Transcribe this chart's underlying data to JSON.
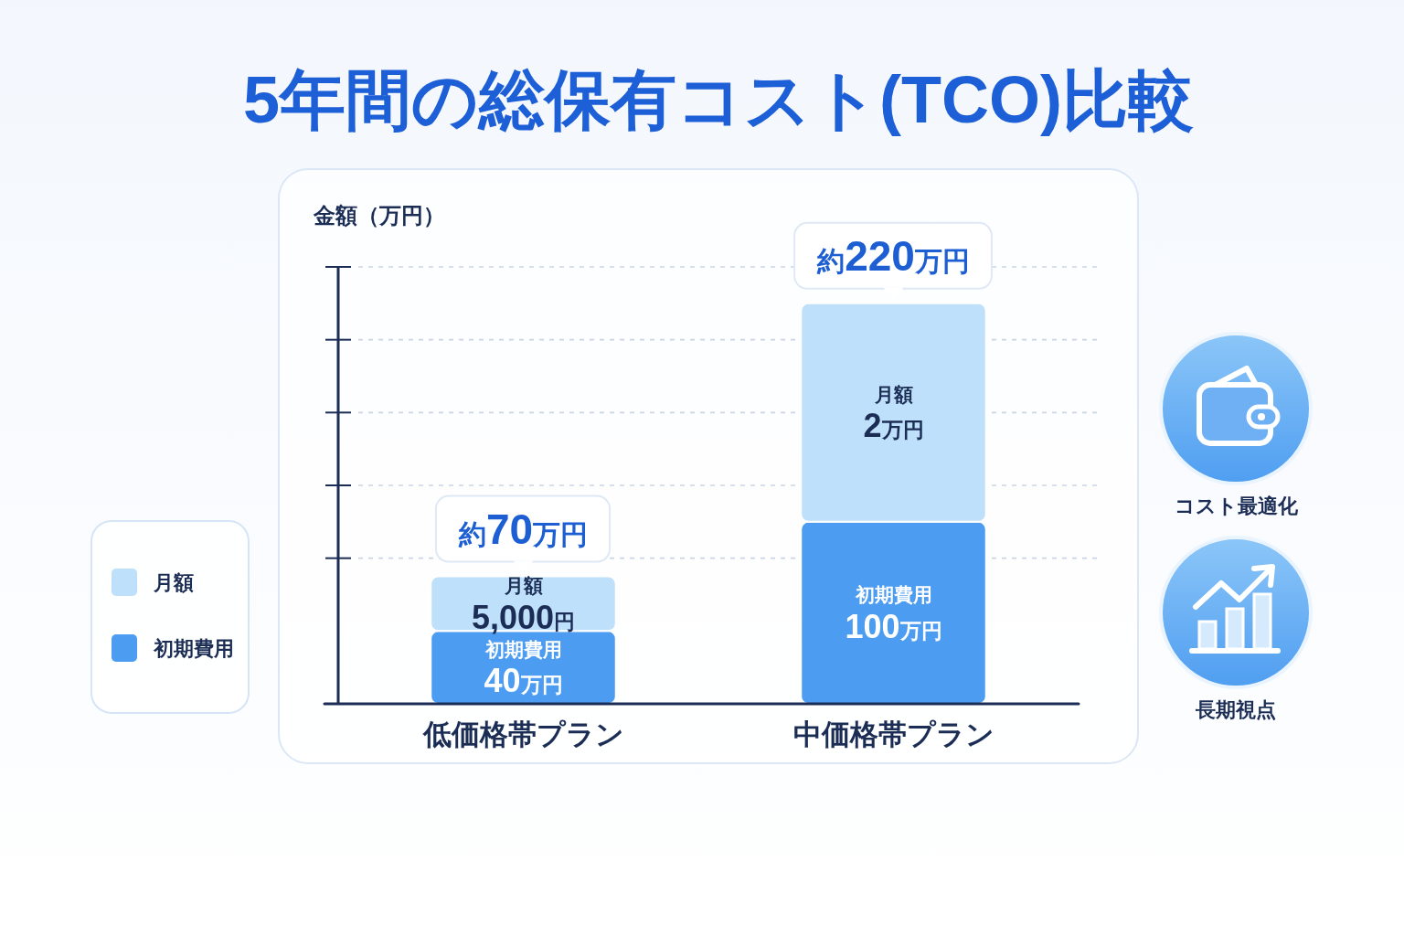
{
  "chart_data": {
    "type": "bar",
    "title": "5年間の総保有コスト(TCO)比較",
    "ylabel": "金額（万円）",
    "categories": [
      "低価格帯プラン",
      "中価格帯プラン"
    ],
    "stacked": true,
    "series": [
      {
        "name": "初期費用",
        "color": "#4c9cf2",
        "values": [
          40,
          100
        ],
        "value_labels": [
          "初期費用\n40万円",
          "初期費用\n100万円"
        ]
      },
      {
        "name": "月額",
        "color": "#bfe0fa",
        "values": [
          30,
          120
        ],
        "value_labels": [
          "月額\n5,000円",
          "月額\n2万円"
        ]
      }
    ],
    "totals": [
      "約70万円",
      "約220万円"
    ],
    "ylim": [
      0,
      240
    ],
    "yticks": [
      {
        "value": 80,
        "label": null
      },
      {
        "value": 120,
        "label": null
      },
      {
        "value": 160,
        "label": null
      },
      {
        "value": 200,
        "label": null
      },
      {
        "value": 240,
        "label": null
      }
    ],
    "tick_labels": "x",
    "grid": "y",
    "legend": "left",
    "annotations": [
      "コスト最適化",
      "長期視点"
    ]
  }
}
